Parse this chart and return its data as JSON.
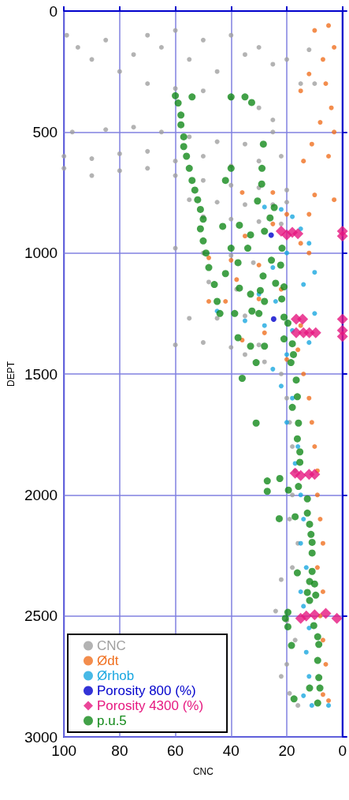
{
  "chart_data": {
    "type": "scatter",
    "xlabel": "CNC",
    "ylabel": "DEPT",
    "xlim": [
      100,
      0
    ],
    "xticks": [
      100,
      80,
      60,
      40,
      20,
      0
    ],
    "ylim": [
      3000,
      0
    ],
    "yticks": [
      0,
      500,
      1000,
      1500,
      2000,
      2500,
      3000
    ],
    "grid": true,
    "legend": "bottom left",
    "series": [
      {
        "name": "CNC",
        "color": "#a0a0a0",
        "marker": "circle",
        "x": [
          99,
          95,
          90,
          85,
          80,
          75,
          70,
          65,
          60,
          55,
          50,
          45,
          40,
          35,
          30,
          25,
          20,
          15,
          10,
          12,
          70,
          60,
          50,
          40,
          30,
          25,
          97,
          85,
          75,
          65,
          55,
          45,
          35,
          25,
          100,
          90,
          80,
          70,
          60,
          50,
          40,
          30,
          22,
          100,
          90,
          80,
          70,
          60,
          50,
          40,
          30,
          20,
          55,
          45,
          35,
          25,
          20,
          50,
          40,
          30,
          22,
          60,
          50,
          40,
          32,
          48,
          38,
          55,
          45,
          35,
          60,
          50,
          40,
          30,
          35,
          28,
          22,
          20,
          19,
          18,
          17,
          18,
          19,
          16,
          18,
          22,
          24,
          20,
          17,
          20,
          22,
          19,
          16
        ],
        "values": [
          100,
          150,
          200,
          120,
          250,
          180,
          100,
          150,
          80,
          200,
          120,
          250,
          100,
          180,
          150,
          220,
          200,
          300,
          300,
          160,
          300,
          320,
          330,
          360,
          400,
          450,
          500,
          490,
          480,
          500,
          520,
          540,
          550,
          500,
          600,
          610,
          590,
          580,
          620,
          600,
          640,
          620,
          600,
          650,
          680,
          660,
          650,
          680,
          700,
          720,
          730,
          740,
          780,
          790,
          800,
          800,
          790,
          850,
          860,
          870,
          880,
          980,
          1000,
          1010,
          1040,
          1120,
          1150,
          1270,
          1270,
          1260,
          1380,
          1370,
          1390,
          1380,
          1420,
          1450,
          1500,
          1600,
          1700,
          1800,
          1900,
          2000,
          2100,
          2200,
          2300,
          2350,
          2480,
          2520,
          2600,
          2700,
          2750,
          2820,
          2870
        ]
      },
      {
        "name": "Ødt",
        "color": "#f07020",
        "marker": "circle",
        "x": [
          5,
          10,
          3,
          7,
          12,
          6,
          15,
          4,
          8,
          3,
          11,
          5,
          14,
          36,
          25,
          10,
          3,
          20,
          12,
          25,
          35,
          15,
          12,
          48,
          40,
          30,
          38,
          48,
          42,
          30,
          22,
          15,
          36,
          28,
          16,
          20,
          14,
          12,
          11,
          10,
          9,
          9,
          8,
          7,
          9,
          7,
          8,
          7,
          6,
          7,
          5
        ],
        "values": [
          60,
          80,
          150,
          200,
          260,
          300,
          330,
          400,
          460,
          500,
          550,
          600,
          620,
          750,
          750,
          760,
          780,
          840,
          840,
          880,
          930,
          960,
          1000,
          1020,
          1030,
          1050,
          1110,
          1200,
          1200,
          1190,
          1150,
          1300,
          1360,
          1330,
          1400,
          1440,
          1500,
          1600,
          1700,
          1800,
          1900,
          2000,
          2100,
          2200,
          2300,
          2400,
          2500,
          2600,
          2700,
          2825,
          2850
        ]
      },
      {
        "name": "Ørhob",
        "color": "#1aa7e0",
        "marker": "circle",
        "x": [
          28,
          22,
          18,
          15,
          12,
          20,
          25,
          10,
          14,
          30,
          24,
          10,
          45,
          35,
          28,
          18,
          12,
          20,
          25,
          22,
          18,
          20,
          16,
          17,
          15,
          14,
          15,
          13,
          15,
          14,
          12,
          13,
          12,
          14,
          11,
          5
        ],
        "values": [
          810,
          820,
          850,
          900,
          960,
          1000,
          1060,
          1080,
          1130,
          1170,
          1200,
          1250,
          1240,
          1280,
          1300,
          1320,
          1370,
          1420,
          1480,
          1550,
          1600,
          1700,
          1800,
          1870,
          2000,
          2100,
          2200,
          2300,
          2400,
          2460,
          2550,
          2650,
          2750,
          2830,
          2870,
          2870
        ]
      },
      {
        "name": "Porosity 800 (%)",
        "color": "#0000cc",
        "marker": "circle",
        "x": [
          25.6,
          24.7
        ],
        "values": [
          926,
          1273
        ]
      },
      {
        "name": "Porosity 4300 (%)",
        "color": "#e6177f",
        "marker": "diamond",
        "x": [
          22,
          20,
          18,
          16,
          0,
          0,
          16.6,
          14.3,
          0,
          16.6,
          14,
          11.9,
          9.6,
          0,
          0,
          17,
          15,
          12,
          10,
          15,
          13,
          10,
          6,
          2
        ],
        "values": [
          910,
          925,
          915,
          920,
          910,
          930,
          1273,
          1273,
          1273,
          1330,
          1330,
          1330,
          1330,
          1320,
          1345,
          1910,
          1920,
          1915,
          1915,
          2510,
          2500,
          2495,
          2490,
          2510
        ]
      },
      {
        "name": "p.u.5",
        "color": "#138a1a",
        "marker": "circle",
        "x": [
          60,
          59,
          58,
          58,
          57,
          57,
          56,
          55,
          54,
          53,
          52,
          51,
          50,
          51,
          50,
          49,
          48,
          46,
          45,
          44,
          54,
          40,
          35,
          32.6,
          28.4,
          40,
          28.9,
          42,
          29,
          30.5,
          24.5,
          26,
          43,
          37,
          33,
          28,
          21.7,
          40,
          34,
          37.5,
          25.5,
          22.2,
          42,
          28.5,
          24,
          21,
          37,
          29.5,
          33,
          28,
          21.8,
          38.7,
          32.5,
          30,
          21,
          19.6,
          37.5,
          33,
          28,
          21,
          18,
          17.6,
          31,
          36,
          18.5,
          16.6,
          16.2,
          18,
          15.8,
          31,
          16.2,
          15.3,
          15.3,
          27,
          22.5,
          27,
          19.4,
          15.8,
          12.6,
          22.7,
          17,
          12.6,
          11.8,
          11.3,
          10.9,
          10.9,
          16.2,
          10.9,
          11.8,
          10,
          12.6,
          9.6,
          11.8,
          19.6,
          20.5,
          19.6,
          10.3,
          8.9,
          8.5,
          18.3,
          8.9,
          8.5,
          11.8,
          8.1,
          17.4,
          8.9
        ],
        "values": [
          350,
          380,
          430,
          470,
          520,
          560,
          600,
          650,
          700,
          740,
          780,
          820,
          860,
          900,
          950,
          1000,
          1060,
          1130,
          1200,
          1250,
          355,
          355,
          355,
          378,
          550,
          650,
          650,
          700,
          715,
          785,
          812,
          855,
          890,
          885,
          925,
          910,
          980,
          980,
          980,
          1040,
          1030,
          1050,
          1085,
          1095,
          1125,
          1140,
          1145,
          1155,
          1170,
          1200,
          1190,
          1250,
          1240,
          1250,
          1265,
          1290,
          1350,
          1385,
          1385,
          1355,
          1375,
          1420,
          1453,
          1518,
          1453,
          1525,
          1594,
          1638,
          1703,
          1703,
          1768,
          1822,
          1865,
          1942,
          1932,
          1985,
          1980,
          1965,
          2016,
          2098,
          2090,
          2075,
          2121,
          2163,
          2196,
          2240,
          2322,
          2316,
          2358,
          2368,
          2403,
          2414,
          2436,
          2485,
          2510,
          2545,
          2540,
          2586,
          2618,
          2622,
          2684,
          2755,
          2798,
          2798,
          2843,
          2860
        ]
      }
    ]
  }
}
